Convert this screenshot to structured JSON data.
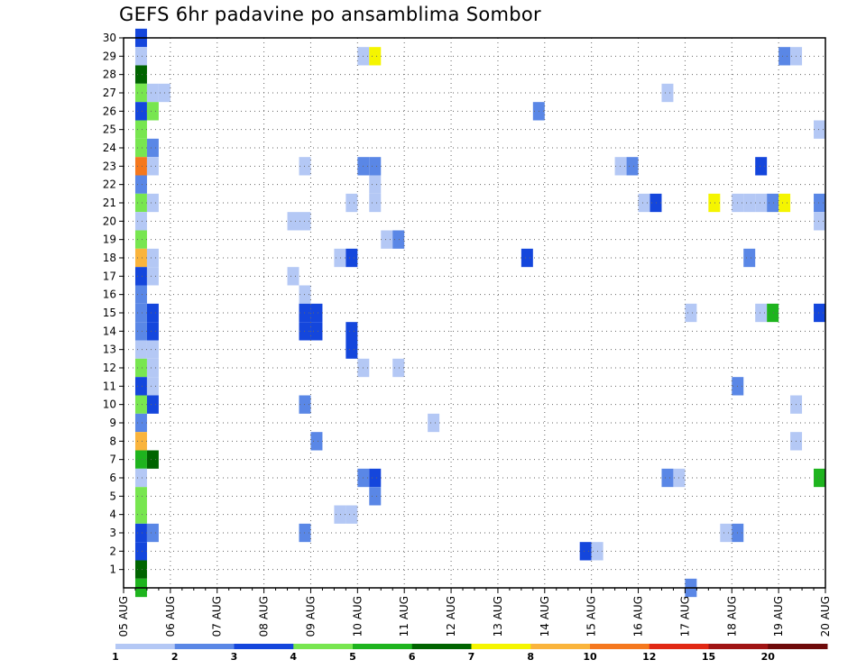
{
  "chart_data": {
    "type": "heatmap",
    "title": "GEFS 6hr padavine po ansamblima Sombor",
    "x_ticks": [
      "05 AUG",
      "06 AUG",
      "07 AUG",
      "08 AUG",
      "09 AUG",
      "10 AUG",
      "11 AUG",
      "12 AUG",
      "13 AUG",
      "14 AUG",
      "15 AUG",
      "16 AUG",
      "17 AUG",
      "18 AUG",
      "19 AUG",
      "20 AUG"
    ],
    "y_ticks": [
      "1",
      "2",
      "3",
      "4",
      "5",
      "6",
      "7",
      "8",
      "9",
      "10",
      "11",
      "12",
      "13",
      "14",
      "15",
      "16",
      "17",
      "18",
      "19",
      "20",
      "21",
      "22",
      "23",
      "24",
      "25",
      "26",
      "27",
      "28",
      "29",
      "30"
    ],
    "grid": true,
    "colorbar": {
      "labels": [
        "1",
        "2",
        "3",
        "4",
        "5",
        "6",
        "7",
        "8",
        "10",
        "12",
        "15",
        "20"
      ],
      "colors": [
        "#b4c8f5",
        "#5a87e6",
        "#1446dc",
        "#78e650",
        "#1eb41e",
        "#006400",
        "#f5f500",
        "#fab43c",
        "#f5781e",
        "#e12814",
        "#a01414",
        "#6e0a0a"
      ]
    },
    "cells": [
      {
        "t": 0.375,
        "m": 30,
        "c": 2
      },
      {
        "t": 0.375,
        "m": 29,
        "c": 0
      },
      {
        "t": 0.375,
        "m": 28,
        "c": 5
      },
      {
        "t": 0.375,
        "m": 27,
        "c": 3
      },
      {
        "t": 0.375,
        "m": 26,
        "c": 2
      },
      {
        "t": 0.375,
        "m": 25,
        "c": 3
      },
      {
        "t": 0.375,
        "m": 24,
        "c": 3
      },
      {
        "t": 0.375,
        "m": 23,
        "c": 8
      },
      {
        "t": 0.375,
        "m": 22,
        "c": 1
      },
      {
        "t": 0.375,
        "m": 21,
        "c": 3
      },
      {
        "t": 0.375,
        "m": 20,
        "c": 0
      },
      {
        "t": 0.375,
        "m": 19,
        "c": 3
      },
      {
        "t": 0.375,
        "m": 18,
        "c": 7
      },
      {
        "t": 0.375,
        "m": 17,
        "c": 2
      },
      {
        "t": 0.375,
        "m": 16,
        "c": 1
      },
      {
        "t": 0.375,
        "m": 15,
        "c": 1
      },
      {
        "t": 0.375,
        "m": 14,
        "c": 1
      },
      {
        "t": 0.375,
        "m": 13,
        "c": 0
      },
      {
        "t": 0.375,
        "m": 12,
        "c": 3
      },
      {
        "t": 0.375,
        "m": 11,
        "c": 2
      },
      {
        "t": 0.375,
        "m": 10,
        "c": 3
      },
      {
        "t": 0.375,
        "m": 9,
        "c": 1
      },
      {
        "t": 0.375,
        "m": 8,
        "c": 7
      },
      {
        "t": 0.375,
        "m": 7,
        "c": 4
      },
      {
        "t": 0.375,
        "m": 6,
        "c": 0
      },
      {
        "t": 0.375,
        "m": 5,
        "c": 3
      },
      {
        "t": 0.375,
        "m": 4,
        "c": 3
      },
      {
        "t": 0.375,
        "m": 3,
        "c": 2
      },
      {
        "t": 0.375,
        "m": 2,
        "c": 2
      },
      {
        "t": 0.375,
        "m": 1,
        "c": 5
      },
      {
        "t": 0.375,
        "m": 0,
        "c": 4
      },
      {
        "t": 0.625,
        "m": 27,
        "c": 0
      },
      {
        "t": 0.875,
        "m": 27,
        "c": 0
      },
      {
        "t": 0.625,
        "m": 26,
        "c": 3
      },
      {
        "t": 0.625,
        "m": 24,
        "c": 1
      },
      {
        "t": 0.625,
        "m": 23,
        "c": 0
      },
      {
        "t": 0.625,
        "m": 21,
        "c": 0
      },
      {
        "t": 0.625,
        "m": 18,
        "c": 0
      },
      {
        "t": 0.625,
        "m": 17,
        "c": 0
      },
      {
        "t": 0.625,
        "m": 15,
        "c": 2
      },
      {
        "t": 0.625,
        "m": 14,
        "c": 2
      },
      {
        "t": 0.625,
        "m": 13,
        "c": 0
      },
      {
        "t": 0.625,
        "m": 12,
        "c": 0
      },
      {
        "t": 0.625,
        "m": 11,
        "c": 0
      },
      {
        "t": 0.625,
        "m": 10,
        "c": 2
      },
      {
        "t": 0.625,
        "m": 7,
        "c": 5
      },
      {
        "t": 0.625,
        "m": 3,
        "c": 1
      },
      {
        "t": 3.625,
        "m": 20,
        "c": 0
      },
      {
        "t": 3.625,
        "m": 17,
        "c": 0
      },
      {
        "t": 3.875,
        "m": 23,
        "c": 0
      },
      {
        "t": 3.875,
        "m": 20,
        "c": 0
      },
      {
        "t": 3.875,
        "m": 16,
        "c": 0
      },
      {
        "t": 3.875,
        "m": 15,
        "c": 2
      },
      {
        "t": 3.875,
        "m": 14,
        "c": 2
      },
      {
        "t": 3.875,
        "m": 10,
        "c": 1
      },
      {
        "t": 3.875,
        "m": 3,
        "c": 1
      },
      {
        "t": 4.125,
        "m": 15,
        "c": 2
      },
      {
        "t": 4.125,
        "m": 14,
        "c": 2
      },
      {
        "t": 4.125,
        "m": 8,
        "c": 1
      },
      {
        "t": 4.625,
        "m": 18,
        "c": 0
      },
      {
        "t": 4.625,
        "m": 4,
        "c": 0
      },
      {
        "t": 4.875,
        "m": 18,
        "c": 2
      },
      {
        "t": 4.875,
        "m": 14,
        "c": 2
      },
      {
        "t": 4.875,
        "m": 13,
        "c": 2
      },
      {
        "t": 4.875,
        "m": 4,
        "c": 0
      },
      {
        "t": 4.875,
        "m": 21,
        "c": 0
      },
      {
        "t": 5.125,
        "m": 29,
        "c": 0
      },
      {
        "t": 5.125,
        "m": 23,
        "c": 1
      },
      {
        "t": 5.125,
        "m": 12,
        "c": 0
      },
      {
        "t": 5.125,
        "m": 6,
        "c": 1
      },
      {
        "t": 5.375,
        "m": 29,
        "c": 6
      },
      {
        "t": 5.375,
        "m": 23,
        "c": 1
      },
      {
        "t": 5.375,
        "m": 22,
        "c": 0
      },
      {
        "t": 5.375,
        "m": 21,
        "c": 0
      },
      {
        "t": 5.375,
        "m": 6,
        "c": 2
      },
      {
        "t": 5.375,
        "m": 5,
        "c": 1
      },
      {
        "t": 5.625,
        "m": 19,
        "c": 0
      },
      {
        "t": 5.875,
        "m": 19,
        "c": 1
      },
      {
        "t": 5.875,
        "m": 12,
        "c": 0
      },
      {
        "t": 6.625,
        "m": 9,
        "c": 0
      },
      {
        "t": 8.625,
        "m": 18,
        "c": 2
      },
      {
        "t": 8.875,
        "m": 26,
        "c": 1
      },
      {
        "t": 9.875,
        "m": 2,
        "c": 2
      },
      {
        "t": 10.125,
        "m": 2,
        "c": 0
      },
      {
        "t": 10.625,
        "m": 23,
        "c": 0
      },
      {
        "t": 10.875,
        "m": 23,
        "c": 1
      },
      {
        "t": 11.125,
        "m": 21,
        "c": 0
      },
      {
        "t": 11.375,
        "m": 21,
        "c": 2
      },
      {
        "t": 11.625,
        "m": 27,
        "c": 0
      },
      {
        "t": 11.625,
        "m": 6,
        "c": 1
      },
      {
        "t": 11.875,
        "m": 6,
        "c": 0
      },
      {
        "t": 12.125,
        "m": 15,
        "c": 0
      },
      {
        "t": 12.125,
        "m": 0,
        "c": 1
      },
      {
        "t": 12.625,
        "m": 21,
        "c": 6
      },
      {
        "t": 12.875,
        "m": 3,
        "c": 0
      },
      {
        "t": 13.125,
        "m": 21,
        "c": 0
      },
      {
        "t": 13.125,
        "m": 3,
        "c": 1
      },
      {
        "t": 13.125,
        "m": 11,
        "c": 1
      },
      {
        "t": 13.375,
        "m": 21,
        "c": 0
      },
      {
        "t": 13.375,
        "m": 18,
        "c": 1
      },
      {
        "t": 13.625,
        "m": 15,
        "c": 0
      },
      {
        "t": 13.625,
        "m": 21,
        "c": 0
      },
      {
        "t": 13.625,
        "m": 23,
        "c": 2
      },
      {
        "t": 13.875,
        "m": 21,
        "c": 1
      },
      {
        "t": 13.875,
        "m": 15,
        "c": 4
      },
      {
        "t": 14.125,
        "m": 21,
        "c": 6
      },
      {
        "t": 14.125,
        "m": 29,
        "c": 1
      },
      {
        "t": 14.375,
        "m": 29,
        "c": 0
      },
      {
        "t": 14.375,
        "m": 10,
        "c": 0
      },
      {
        "t": 14.375,
        "m": 8,
        "c": 0
      },
      {
        "t": 14.875,
        "m": 25,
        "c": 0
      },
      {
        "t": 14.875,
        "m": 21,
        "c": 1
      },
      {
        "t": 14.875,
        "m": 20,
        "c": 0
      },
      {
        "t": 14.875,
        "m": 15,
        "c": 2
      },
      {
        "t": 14.875,
        "m": 6,
        "c": 4
      }
    ]
  }
}
